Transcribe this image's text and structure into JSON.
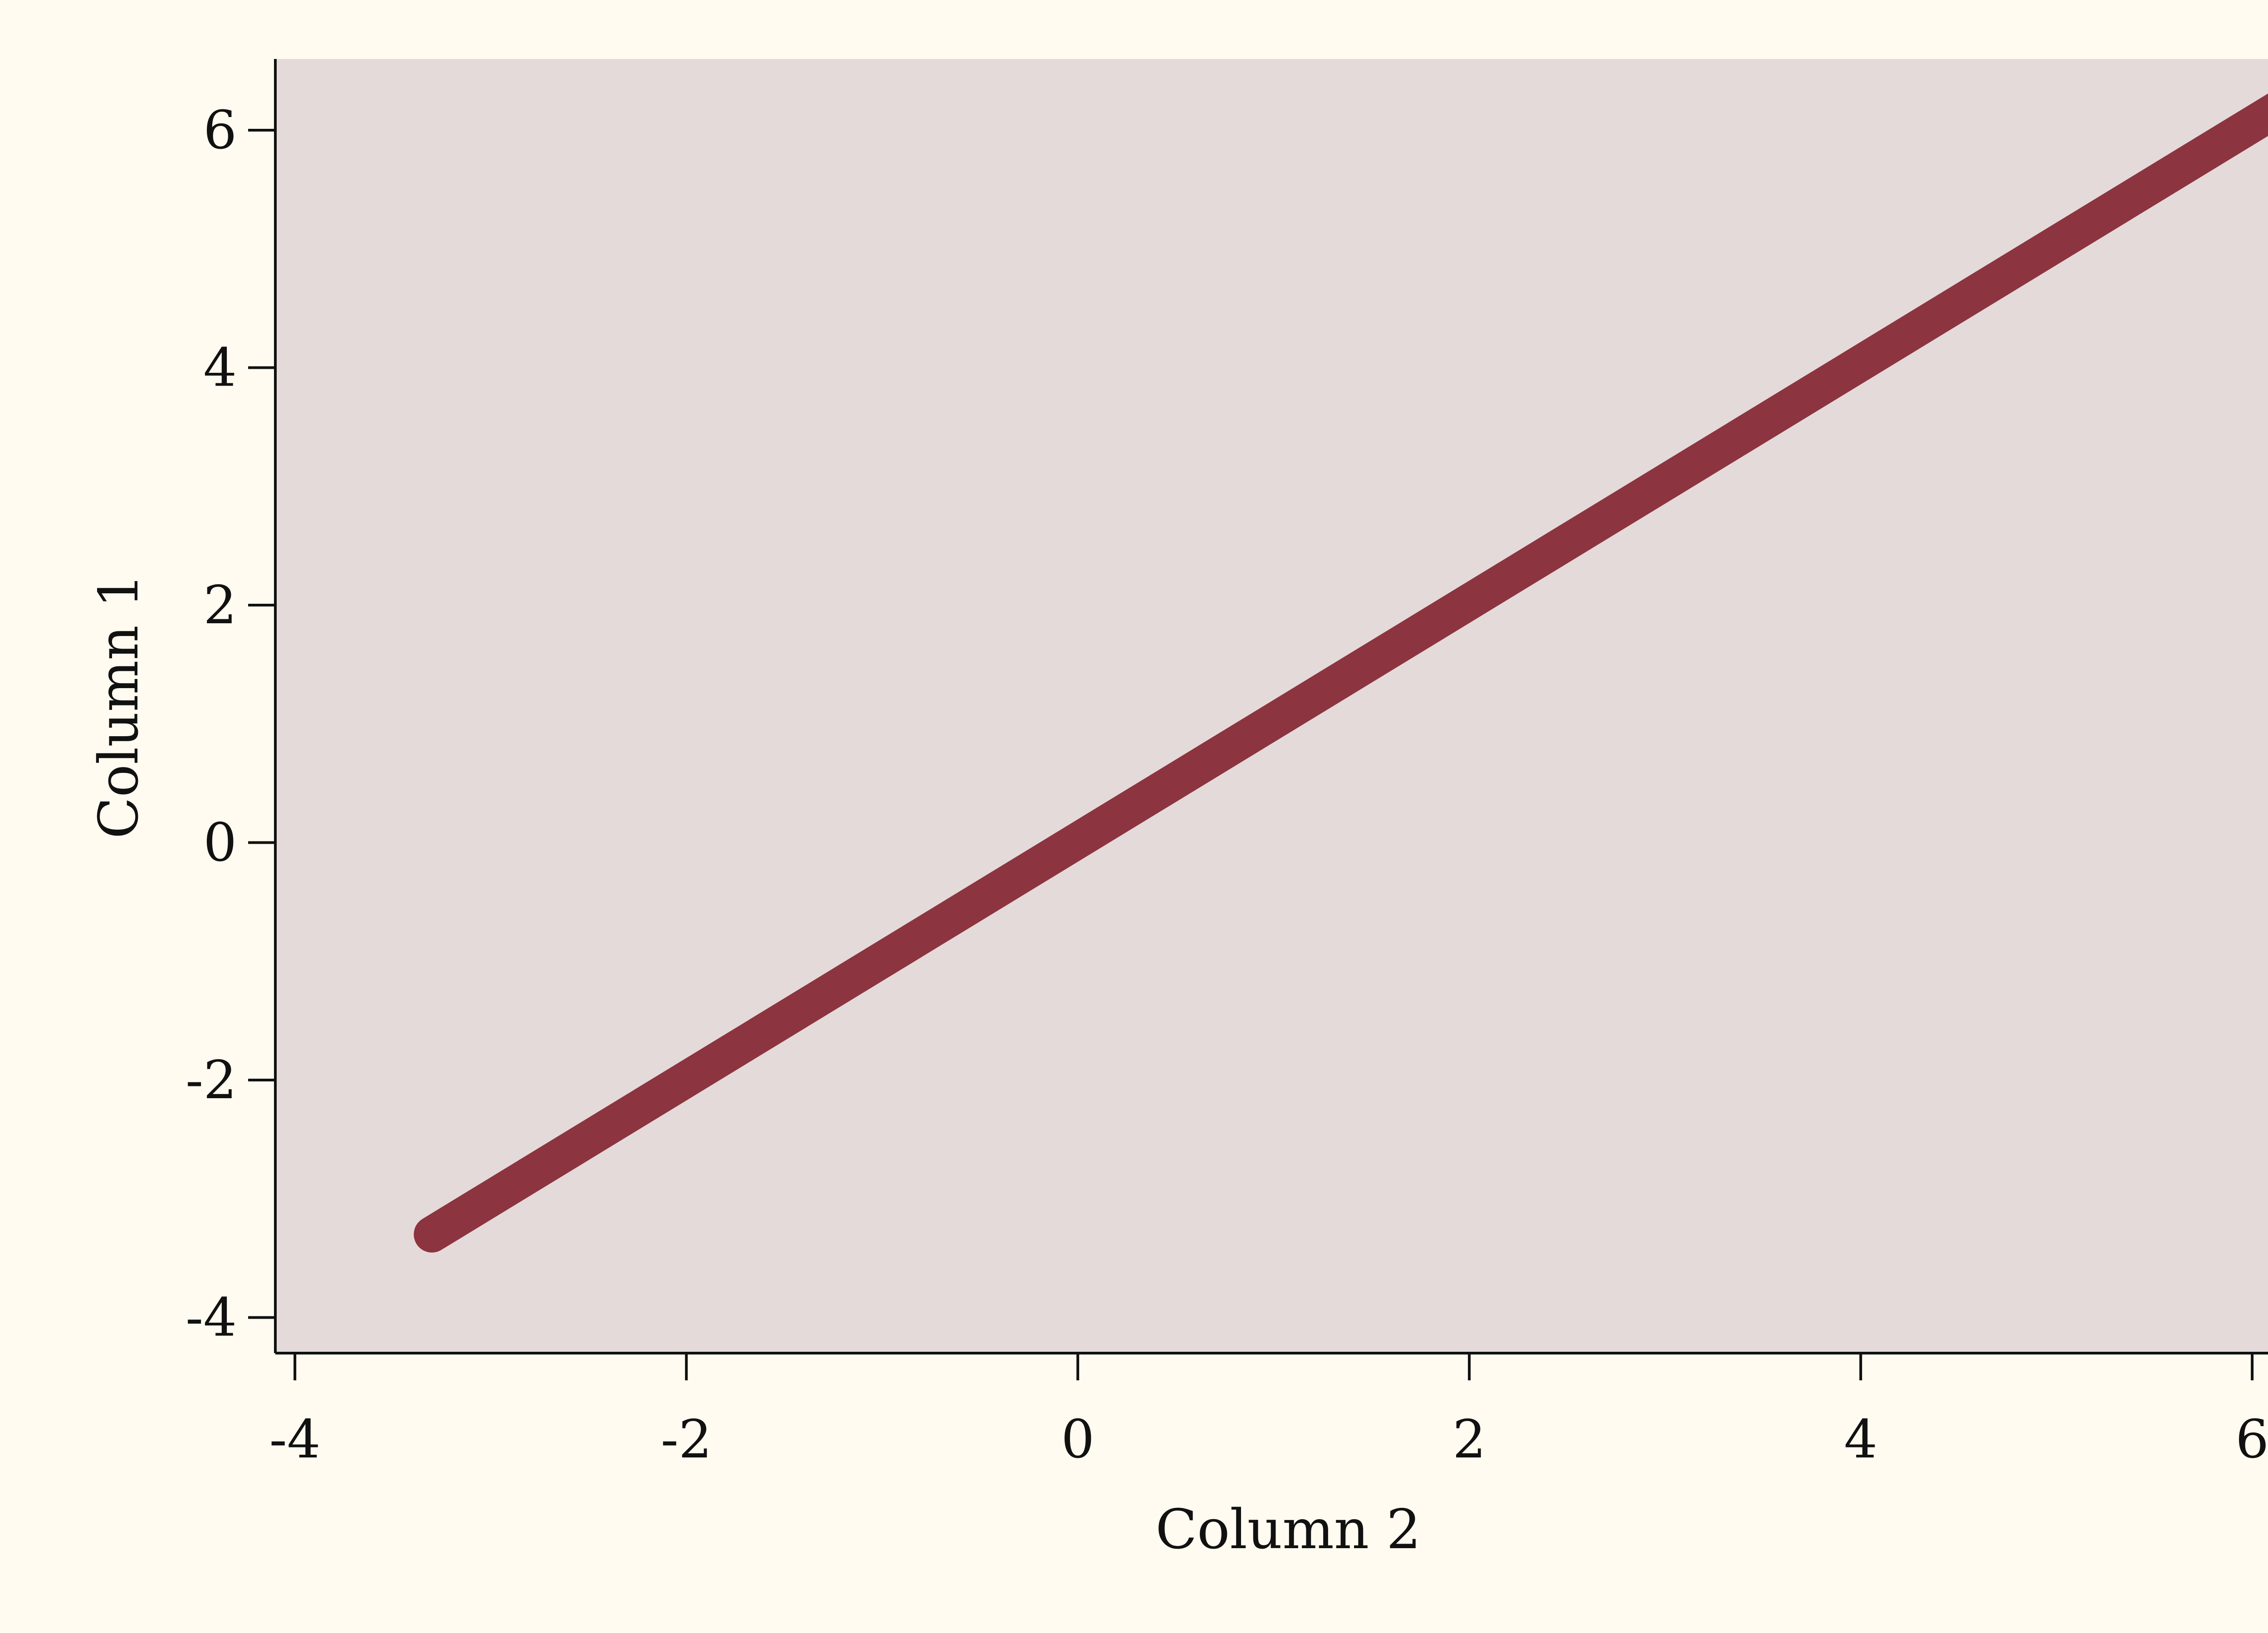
{
  "chart_data": {
    "type": "line",
    "xlabel": "Column 2",
    "ylabel": "Column 1",
    "xlim": [
      -4.1,
      6.25
    ],
    "ylim": [
      -4.3,
      6.6
    ],
    "x_ticks": [
      -4,
      -2,
      0,
      2,
      4,
      6
    ],
    "y_ticks": [
      -4,
      -2,
      0,
      2,
      4,
      6
    ],
    "x_tick_labels": [
      "-4",
      "-2",
      "0",
      "2",
      "4",
      "6"
    ],
    "y_tick_labels": [
      "-4",
      "-2",
      "0",
      "2",
      "4",
      "6"
    ],
    "series": [
      {
        "x": [
          -3.3,
          6.25
        ],
        "y": [
          -3.3,
          6.3
        ],
        "color": "#8c343f"
      }
    ],
    "grid": false,
    "legend": false,
    "colors": {
      "page_background": "#fffbf0",
      "plot_background": "#e4dada",
      "axis": "#111111"
    }
  }
}
